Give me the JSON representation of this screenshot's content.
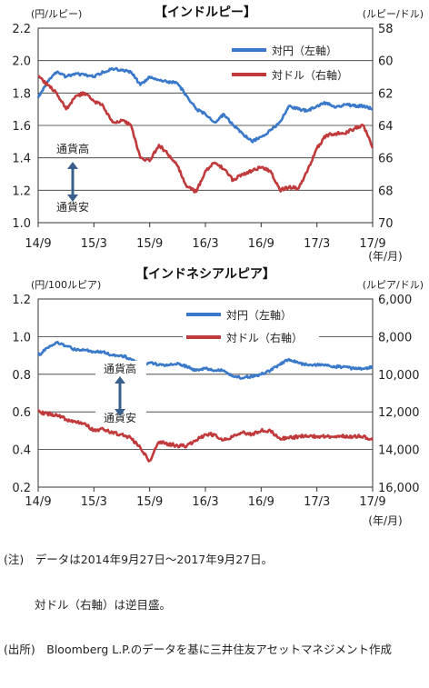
{
  "notes": [
    "(注)　データは2014年9月27日～2017年9月27日。",
    "対ドル（右軸）は逆目盛。",
    "(出所)　Bloomberg L.P.のデータを基に三井住友アセットマネジメント作成"
  ],
  "colors": {
    "yen_series": "#3a78c9",
    "usd_series": "#c0393b",
    "grid": "#333333",
    "arrow": "#3a5f8a"
  },
  "chart_data": [
    {
      "type": "line",
      "title": "【インドルピー】",
      "left_axis_label": "(円/ルピー)",
      "right_axis_label": "(ルピー/ドル)",
      "x_unit_label": "(年/月)",
      "x_tick_labels": [
        "14/9",
        "15/3",
        "15/9",
        "16/3",
        "16/9",
        "17/3",
        "17/9"
      ],
      "x_range": [
        "2014/9",
        "2017/9"
      ],
      "y_left_range": [
        1.0,
        2.2
      ],
      "y_left_ticks": [
        "1.0",
        "1.2",
        "1.4",
        "1.6",
        "1.8",
        "2.0",
        "2.2"
      ],
      "y_right_range": [
        58,
        70
      ],
      "y_right_ticks": [
        "58",
        "60",
        "62",
        "64",
        "66",
        "68",
        "70"
      ],
      "y_right_inverted": true,
      "grid": true,
      "legend_position": "top-right",
      "annotations": {
        "up": "通貨高",
        "down": "通貨安"
      },
      "x": [
        "2014/9",
        "2014/10",
        "2014/11",
        "2014/12",
        "2015/1",
        "2015/2",
        "2015/3",
        "2015/4",
        "2015/5",
        "2015/6",
        "2015/7",
        "2015/8",
        "2015/9",
        "2015/10",
        "2015/11",
        "2015/12",
        "2016/1",
        "2016/2",
        "2016/3",
        "2016/4",
        "2016/5",
        "2016/6",
        "2016/7",
        "2016/8",
        "2016/9",
        "2016/10",
        "2016/11",
        "2016/12",
        "2017/1",
        "2017/2",
        "2017/3",
        "2017/4",
        "2017/5",
        "2017/6",
        "2017/7",
        "2017/8",
        "2017/9"
      ],
      "series": [
        {
          "name": "対円（左軸）",
          "axis": "left",
          "values": [
            1.77,
            1.87,
            1.93,
            1.9,
            1.92,
            1.91,
            1.9,
            1.93,
            1.95,
            1.94,
            1.93,
            1.85,
            1.9,
            1.88,
            1.87,
            1.86,
            1.78,
            1.7,
            1.67,
            1.62,
            1.67,
            1.6,
            1.55,
            1.5,
            1.53,
            1.57,
            1.62,
            1.72,
            1.7,
            1.69,
            1.72,
            1.74,
            1.71,
            1.73,
            1.72,
            1.72,
            1.7
          ]
        },
        {
          "name": "対ドル（右軸）",
          "axis": "right",
          "values": [
            61.0,
            61.5,
            62.0,
            63.0,
            62.2,
            62.0,
            62.5,
            62.8,
            63.8,
            63.7,
            64.0,
            66.0,
            66.2,
            65.2,
            65.8,
            66.5,
            67.8,
            68.1,
            66.8,
            66.3,
            66.7,
            67.4,
            67.0,
            66.8,
            66.6,
            66.8,
            68.0,
            67.8,
            67.9,
            66.8,
            65.4,
            64.6,
            64.5,
            64.5,
            64.2,
            64.0,
            65.4
          ]
        }
      ]
    },
    {
      "type": "line",
      "title": "【インドネシアルピア】",
      "left_axis_label": "(円/100ルピア)",
      "right_axis_label": "(ルピア/ドル)",
      "x_unit_label": "(年/月)",
      "x_tick_labels": [
        "14/9",
        "15/3",
        "15/9",
        "16/3",
        "16/9",
        "17/3",
        "17/9"
      ],
      "x_range": [
        "2014/9",
        "2017/9"
      ],
      "y_left_range": [
        0.2,
        1.2
      ],
      "y_left_ticks": [
        "0.2",
        "0.4",
        "0.6",
        "0.8",
        "1.0",
        "1.2"
      ],
      "y_right_range": [
        6000,
        16000
      ],
      "y_right_ticks": [
        "6,000",
        "8,000",
        "10,000",
        "12,000",
        "14,000",
        "16,000"
      ],
      "y_right_inverted": true,
      "grid": true,
      "legend_position": "top-right",
      "annotations": {
        "up": "通貨高",
        "down": "通貨安"
      },
      "x": [
        "2014/9",
        "2014/10",
        "2014/11",
        "2014/12",
        "2015/1",
        "2015/2",
        "2015/3",
        "2015/4",
        "2015/5",
        "2015/6",
        "2015/7",
        "2015/8",
        "2015/9",
        "2015/10",
        "2015/11",
        "2015/12",
        "2016/1",
        "2016/2",
        "2016/3",
        "2016/4",
        "2016/5",
        "2016/6",
        "2016/7",
        "2016/8",
        "2016/9",
        "2016/10",
        "2016/11",
        "2016/12",
        "2017/1",
        "2017/2",
        "2017/3",
        "2017/4",
        "2017/5",
        "2017/6",
        "2017/7",
        "2017/8",
        "2017/9"
      ],
      "series": [
        {
          "name": "対円（左軸）",
          "axis": "left",
          "values": [
            0.9,
            0.94,
            0.97,
            0.95,
            0.93,
            0.93,
            0.92,
            0.92,
            0.9,
            0.9,
            0.88,
            0.85,
            0.86,
            0.85,
            0.85,
            0.86,
            0.84,
            0.82,
            0.83,
            0.82,
            0.82,
            0.79,
            0.78,
            0.79,
            0.8,
            0.82,
            0.85,
            0.88,
            0.86,
            0.85,
            0.85,
            0.85,
            0.84,
            0.84,
            0.83,
            0.83,
            0.84
          ]
        },
        {
          "name": "対ドル（右軸）",
          "axis": "right",
          "values": [
            12000,
            12100,
            12150,
            12400,
            12500,
            12600,
            13000,
            12900,
            13100,
            13200,
            13400,
            13900,
            14600,
            13600,
            13700,
            13800,
            13800,
            13500,
            13200,
            13200,
            13500,
            13300,
            13100,
            13200,
            13000,
            13000,
            13400,
            13400,
            13300,
            13300,
            13300,
            13300,
            13300,
            13300,
            13300,
            13300,
            13500
          ]
        }
      ]
    }
  ]
}
